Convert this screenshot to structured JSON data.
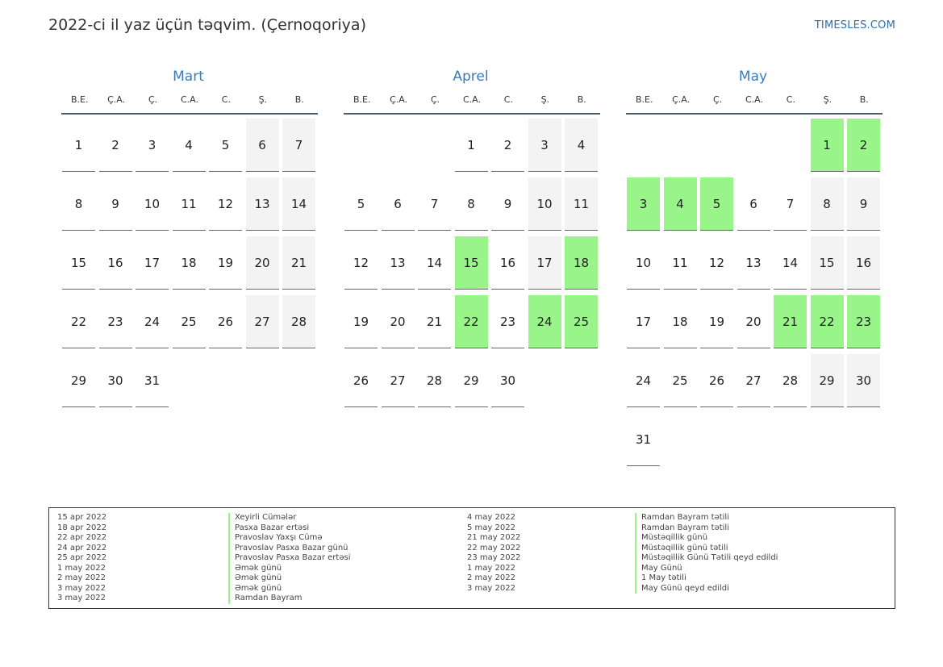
{
  "header": {
    "title": "2022-ci il yaz üçün təqvim. (Çernoqoriya)",
    "site": "TIMESLES.COM"
  },
  "weekdays": [
    "B.E.",
    "Ç.A.",
    "Ç.",
    "C.A.",
    "C.",
    "Ş.",
    "B."
  ],
  "colors": {
    "holiday": "#99f58a",
    "weekend": "#f3f3f3",
    "month_title": "#3a7bb8"
  },
  "months": [
    {
      "name": "Mart",
      "start_weekday": 1,
      "days": 31,
      "holidays": []
    },
    {
      "name": "Aprel",
      "start_weekday": 4,
      "days": 30,
      "holidays": [
        15,
        18,
        22,
        24,
        25
      ]
    },
    {
      "name": "May",
      "start_weekday": 6,
      "days": 31,
      "holidays": [
        1,
        2,
        3,
        4,
        5,
        21,
        22,
        23
      ]
    }
  ],
  "legend": {
    "left": [
      {
        "date": "15 apr 2022",
        "name": "Xeyirli Cümələr"
      },
      {
        "date": "18 apr 2022",
        "name": "Pasxa Bazar ertəsi"
      },
      {
        "date": "22 apr 2022",
        "name": "Pravoslav Yaxşı Cümə"
      },
      {
        "date": "24 apr 2022",
        "name": "Pravoslav Pasxa Bazar günü"
      },
      {
        "date": "25 apr 2022",
        "name": "Pravoslav Pasxa Bazar ertəsi"
      },
      {
        "date": "1 may 2022",
        "name": "Əmək günü"
      },
      {
        "date": "2 may 2022",
        "name": "Əmək günü"
      },
      {
        "date": "3 may 2022",
        "name": "Əmək günü"
      },
      {
        "date": "3 may 2022",
        "name": "Ramdan Bayram"
      }
    ],
    "right": [
      {
        "date": "4 may 2022",
        "name": "Ramdan Bayram tətili"
      },
      {
        "date": "5 may 2022",
        "name": "Ramdan Bayram tətili"
      },
      {
        "date": "21 may 2022",
        "name": "Müstəqillik günü"
      },
      {
        "date": "22 may 2022",
        "name": "Müstəqillik günü tətili"
      },
      {
        "date": "23 may 2022",
        "name": "Müstəqillik Günü Tətili qeyd edildi"
      },
      {
        "date": "1 may 2022",
        "name": "May Günü"
      },
      {
        "date": "2 may 2022",
        "name": "1 May tətili"
      },
      {
        "date": "3 may 2022",
        "name": "May Günü qeyd edildi"
      }
    ]
  }
}
